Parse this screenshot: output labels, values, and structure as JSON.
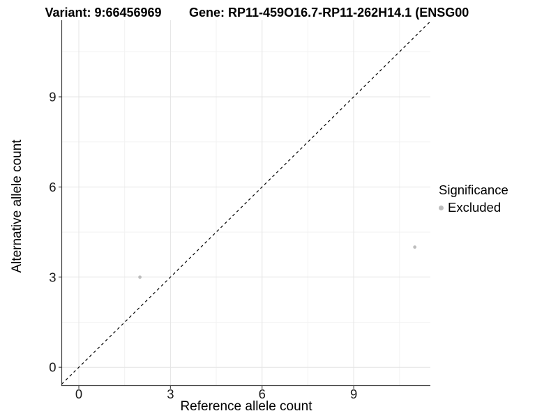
{
  "header": {
    "variant_title": "Variant: 9:66456969",
    "gene_title": "Gene: RP11-459O16.7-RP11-262H14.1 (ENSG00"
  },
  "legend": {
    "title": "Significance",
    "items": [
      {
        "label": "Excluded",
        "color": "#bdbdbd"
      }
    ]
  },
  "chart_data": {
    "type": "scatter",
    "title": "Variant: 9:66456969  Gene: RP11-459O16.7-RP11-262H14.1 (ENSG00",
    "xlabel": "Reference allele count",
    "ylabel": "Alternative allele count",
    "x_ticks": [
      0,
      3,
      6,
      9
    ],
    "y_ticks": [
      0,
      3,
      6,
      9
    ],
    "x_minor_ticks": [
      1.5,
      4.5,
      7.5,
      10.5
    ],
    "y_minor_ticks": [
      1.5,
      4.5,
      7.5,
      10.5
    ],
    "xlim": [
      -0.56,
      11.51
    ],
    "ylim": [
      -0.61,
      11.55
    ],
    "grid": true,
    "legend_position": "right",
    "points": [
      {
        "x": 2,
        "y": 3,
        "significance": "Excluded"
      },
      {
        "x": 11,
        "y": 4,
        "significance": "Excluded"
      }
    ],
    "point_color": "#bdbdbd",
    "point_radius": 2.4,
    "identity_line": {
      "style": "dashed",
      "color": "#000000",
      "slope": 1,
      "intercept": 0
    },
    "colors": {
      "grid_major": "#e4e4e4",
      "grid_minor": "#f2f2f2",
      "axis": "#404040",
      "tick_text": "#1a1a1a",
      "background": "#ffffff"
    }
  }
}
